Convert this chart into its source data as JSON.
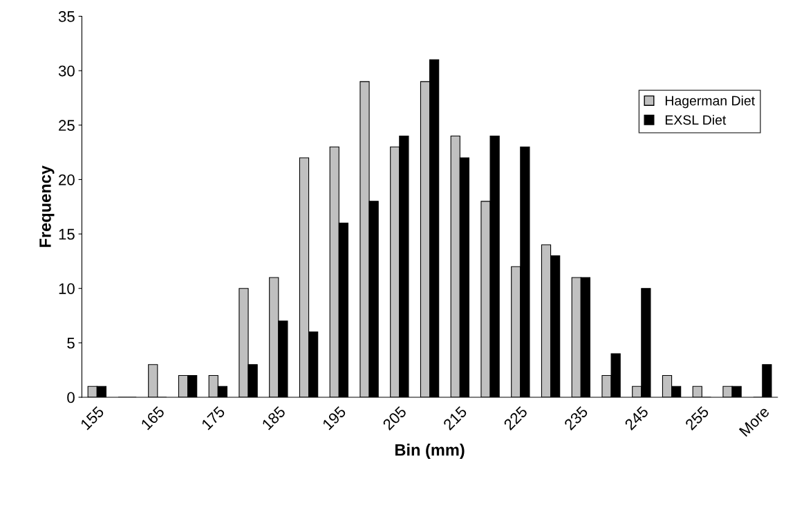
{
  "chart_data": {
    "type": "bar",
    "xlabel": "Bin (mm)",
    "ylabel": "Frequency",
    "categories": [
      "155",
      null,
      "165",
      null,
      "175",
      null,
      "185",
      null,
      "195",
      null,
      "205",
      null,
      "215",
      null,
      "225",
      null,
      "235",
      null,
      "245",
      null,
      "255",
      null,
      "More"
    ],
    "series": [
      {
        "name": "Hagerman Diet",
        "color": "#c0c0c0",
        "values": [
          1,
          0,
          3,
          2,
          2,
          10,
          11,
          22,
          23,
          29,
          23,
          29,
          24,
          18,
          12,
          14,
          11,
          2,
          1,
          2,
          1,
          1,
          0
        ]
      },
      {
        "name": "EXSL Diet",
        "color": "#000000",
        "values": [
          1,
          0,
          0,
          2,
          1,
          3,
          7,
          6,
          16,
          18,
          24,
          31,
          22,
          24,
          23,
          13,
          11,
          4,
          10,
          1,
          0,
          1,
          3
        ]
      }
    ],
    "ylim": [
      0,
      35
    ],
    "yticks": [
      0,
      5,
      10,
      15,
      20,
      25,
      30,
      35
    ],
    "grid": false,
    "legend": "right"
  }
}
